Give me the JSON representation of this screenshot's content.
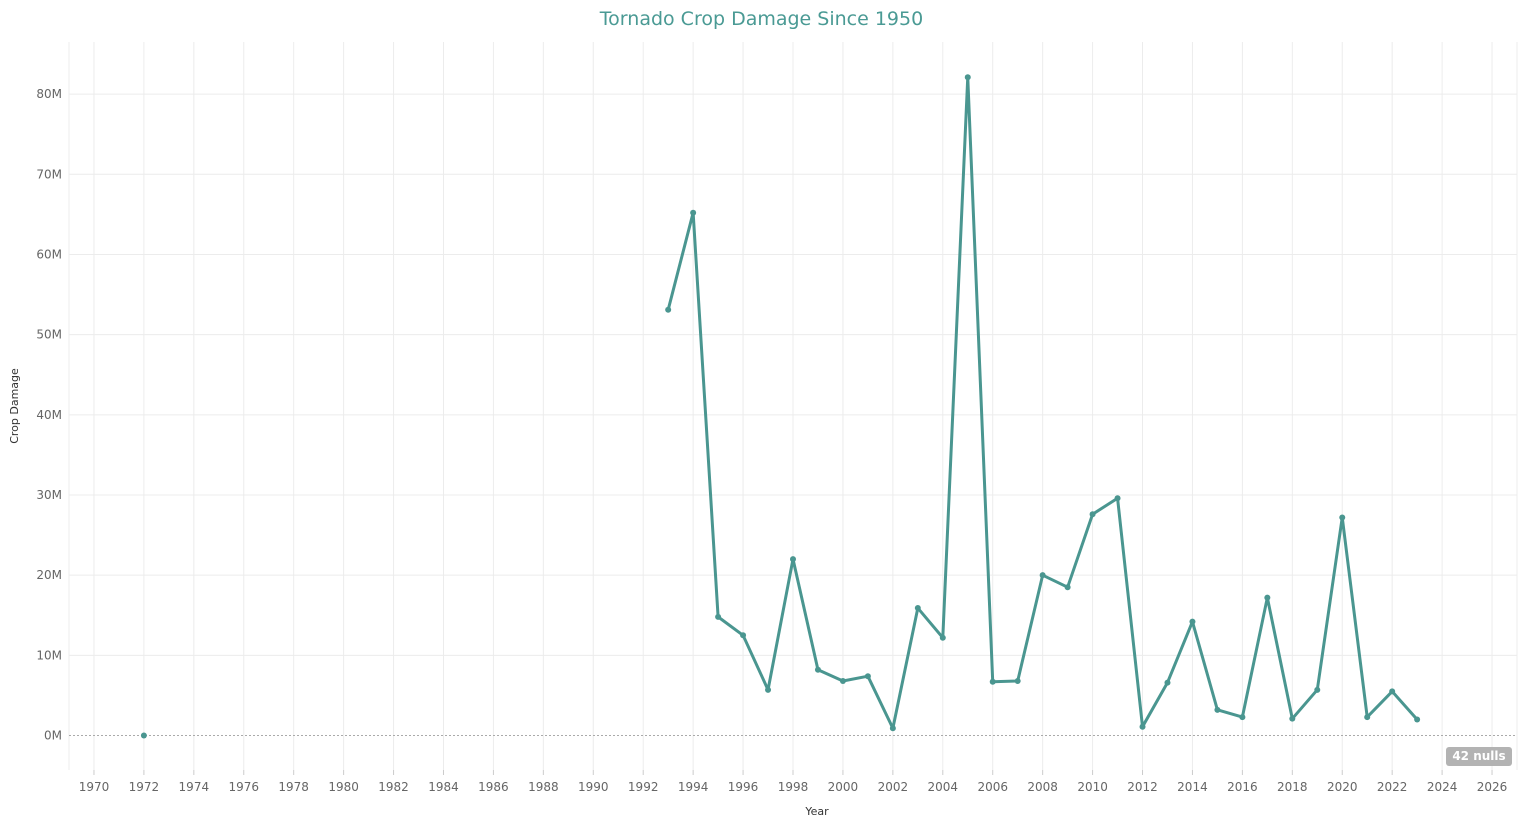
{
  "chart_data": {
    "type": "line",
    "title": "Tornado Crop Damage Since 1950",
    "xlabel": "Year",
    "ylabel": "Crop Damage",
    "xlim": [
      1969,
      2027
    ],
    "ylim": [
      -4300000,
      86500000
    ],
    "x_ticks": [
      1970,
      1972,
      1974,
      1976,
      1978,
      1980,
      1982,
      1984,
      1986,
      1988,
      1990,
      1992,
      1994,
      1996,
      1998,
      2000,
      2002,
      2004,
      2006,
      2008,
      2010,
      2012,
      2014,
      2016,
      2018,
      2020,
      2022,
      2024,
      2026
    ],
    "y_ticks": [
      {
        "value": 0,
        "label": "0M"
      },
      {
        "value": 10000000,
        "label": "10M"
      },
      {
        "value": 20000000,
        "label": "20M"
      },
      {
        "value": 30000000,
        "label": "30M"
      },
      {
        "value": 40000000,
        "label": "40M"
      },
      {
        "value": 50000000,
        "label": "50M"
      },
      {
        "value": 60000000,
        "label": "60M"
      },
      {
        "value": 70000000,
        "label": "70M"
      },
      {
        "value": 80000000,
        "label": "80M"
      }
    ],
    "grid": true,
    "series": [
      {
        "color": "#4a9690",
        "points": [
          [
            1972,
            0
          ],
          [
            1993,
            53100000
          ],
          [
            1994,
            65200000
          ],
          [
            1995,
            14800000
          ],
          [
            1996,
            12500000
          ],
          [
            1997,
            5700000
          ],
          [
            1998,
            22000000
          ],
          [
            1999,
            8200000
          ],
          [
            2000,
            6800000
          ],
          [
            2001,
            7400000
          ],
          [
            2002,
            900000
          ],
          [
            2003,
            15900000
          ],
          [
            2004,
            12200000
          ],
          [
            2005,
            82100000
          ],
          [
            2006,
            6700000
          ],
          [
            2007,
            6800000
          ],
          [
            2008,
            20000000
          ],
          [
            2009,
            18500000
          ],
          [
            2010,
            27600000
          ],
          [
            2011,
            29600000
          ],
          [
            2012,
            1100000
          ],
          [
            2013,
            6600000
          ],
          [
            2014,
            14200000
          ],
          [
            2015,
            3200000
          ],
          [
            2016,
            2300000
          ],
          [
            2017,
            17200000
          ],
          [
            2018,
            2100000
          ],
          [
            2019,
            5700000
          ],
          [
            2020,
            27200000
          ],
          [
            2021,
            2300000
          ],
          [
            2022,
            5500000
          ],
          [
            2023,
            2000000
          ]
        ]
      }
    ],
    "nulls_label": "42 nulls"
  }
}
